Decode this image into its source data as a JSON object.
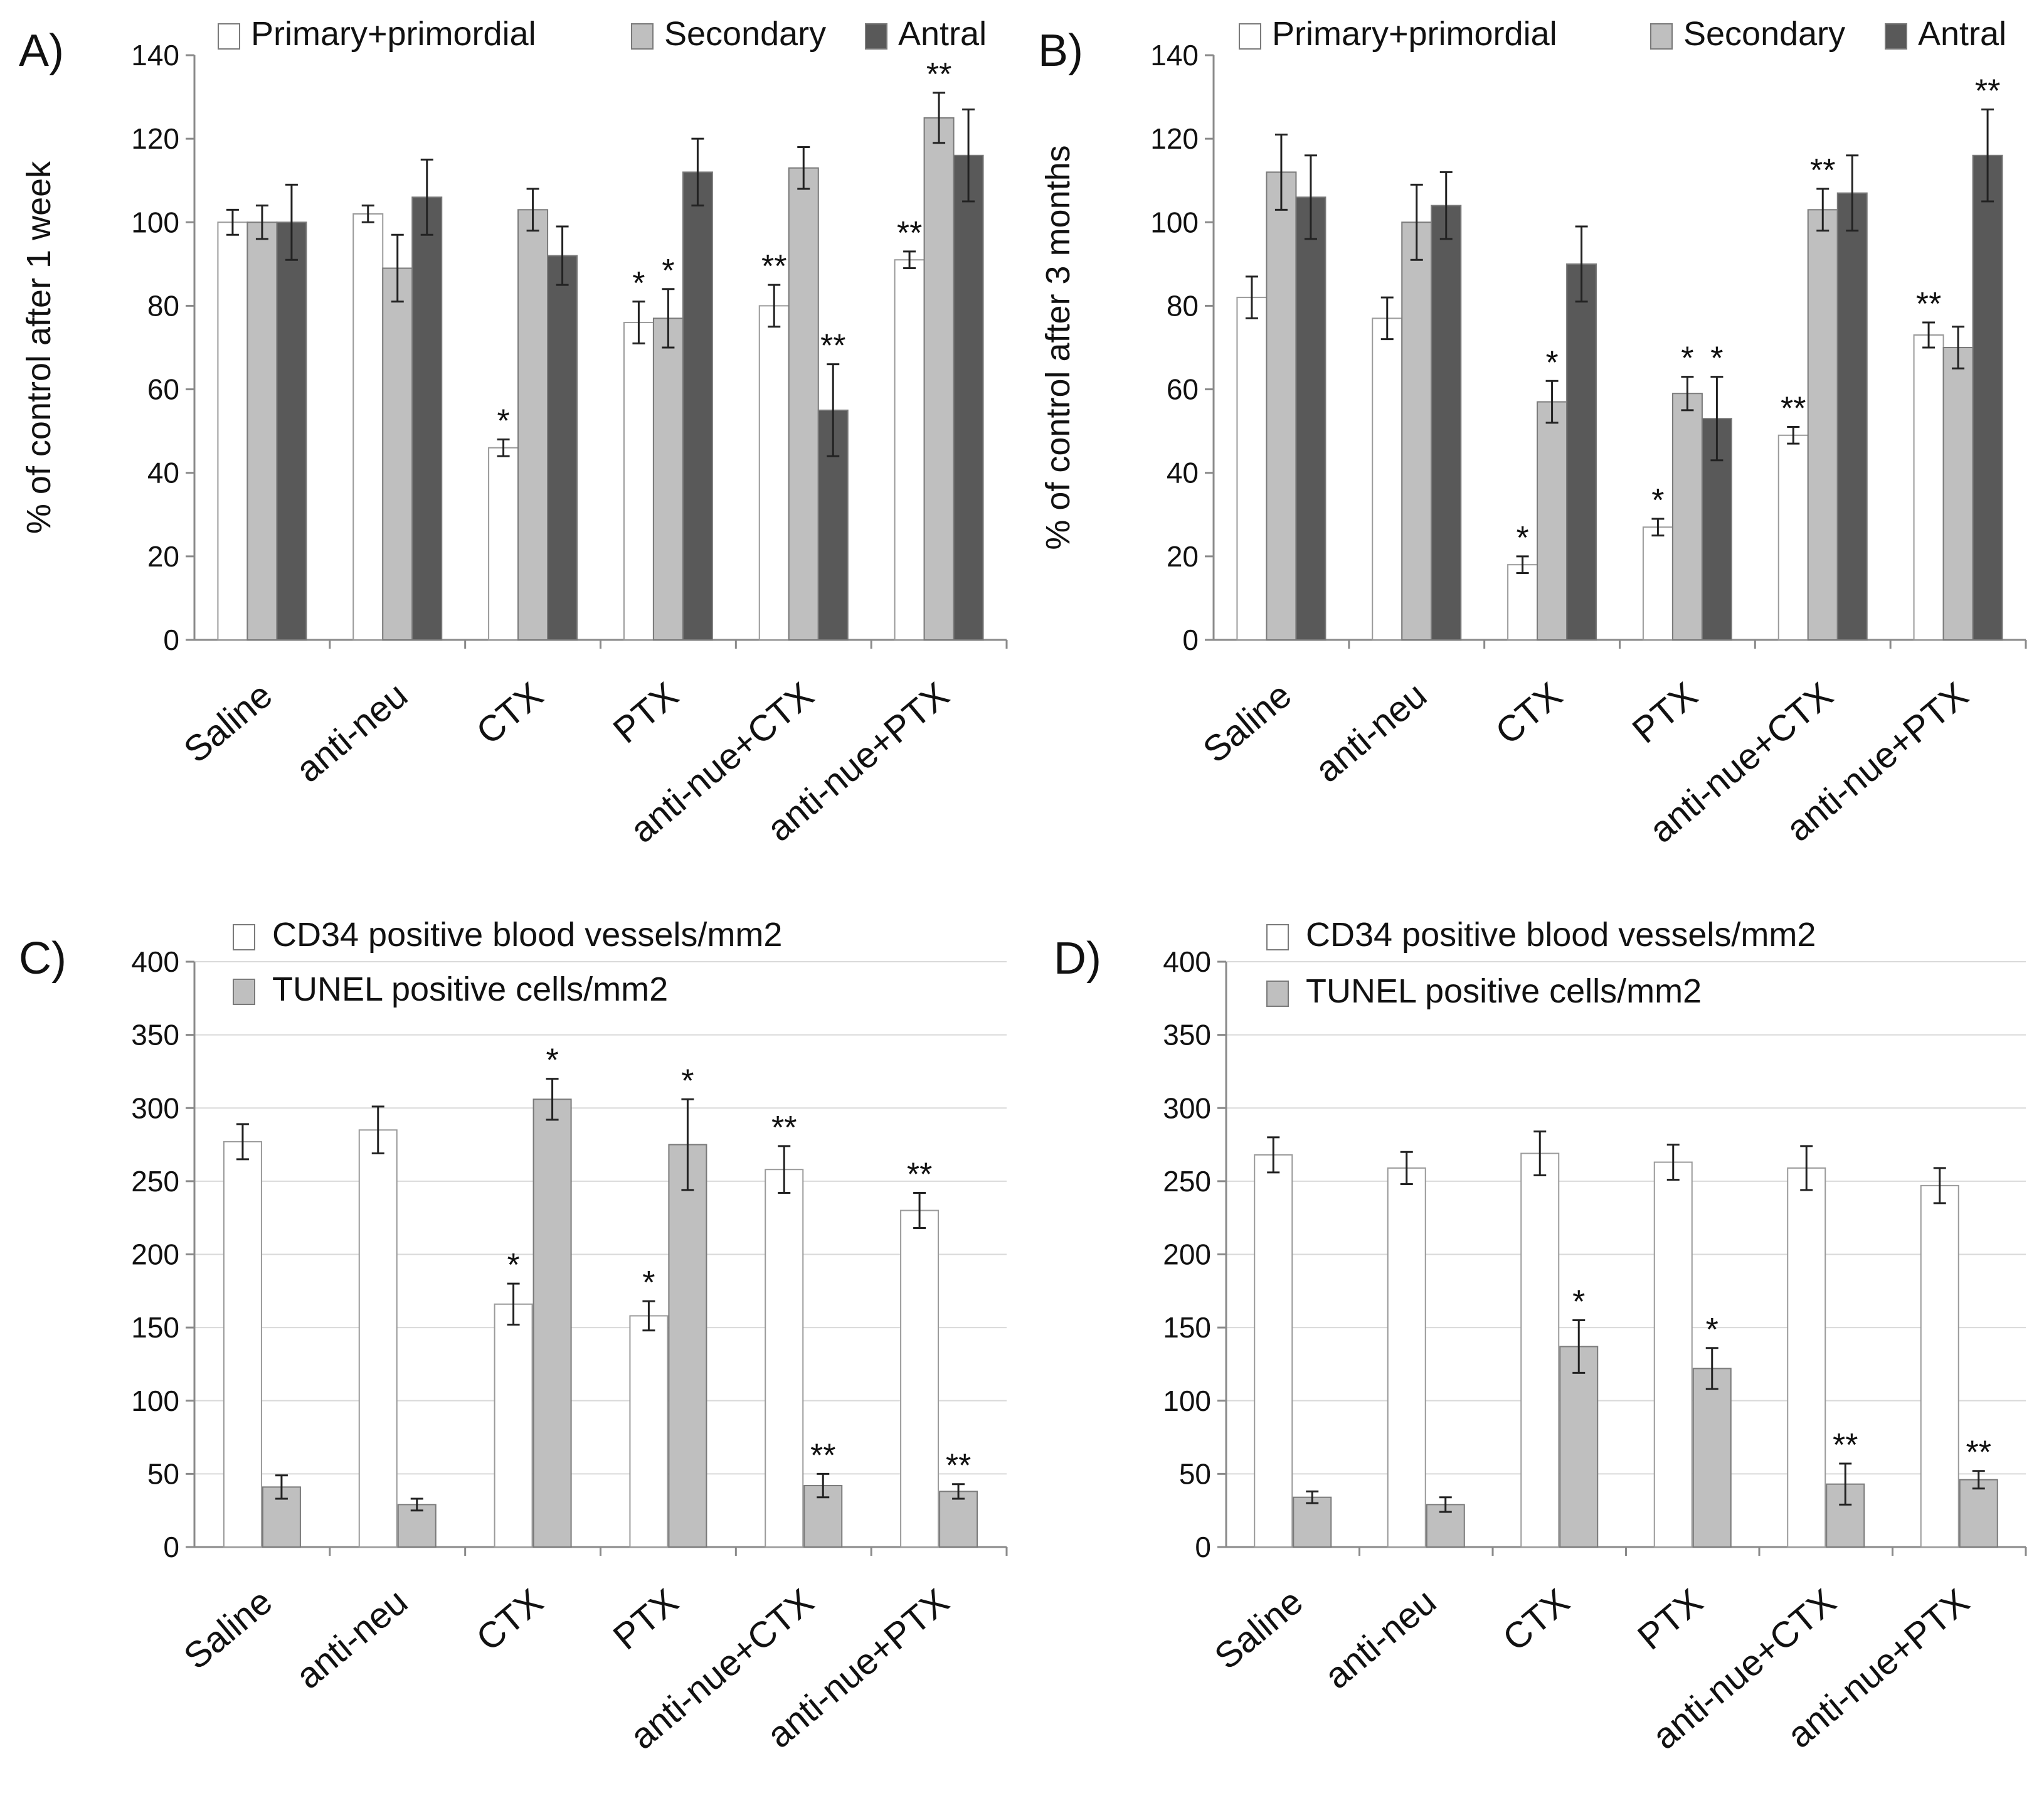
{
  "chart_data": [
    {
      "type": "bar",
      "panel_label": "A)",
      "ylabel": "% of control after 1 week",
      "ylim": [
        0,
        140
      ],
      "yticks": [
        "0",
        "20",
        "40",
        "60",
        "80",
        "100",
        "120",
        "140"
      ],
      "grid": false,
      "legend_position": "top",
      "categories": [
        "Saline",
        "anti-neu",
        "CTX",
        "PTX",
        "anti-nue+CTX",
        "anti-nue+PTX"
      ],
      "series": [
        {
          "name": "Primary+primordial",
          "color": "#ffffff",
          "values": [
            100,
            102,
            46,
            76,
            80,
            91
          ],
          "errors": [
            3,
            2,
            2,
            5,
            5,
            2
          ],
          "sig": [
            "",
            "",
            "*",
            "*",
            "**",
            "**"
          ]
        },
        {
          "name": "Secondary",
          "color": "#bfbfbf",
          "values": [
            100,
            89,
            103,
            77,
            113,
            125
          ],
          "errors": [
            4,
            8,
            5,
            7,
            5,
            6
          ],
          "sig": [
            "",
            "",
            "",
            "*",
            "",
            "**"
          ]
        },
        {
          "name": "Antral",
          "color": "#595959",
          "values": [
            100,
            106,
            92,
            112,
            55,
            116
          ],
          "errors": [
            9,
            9,
            7,
            8,
            11,
            11
          ],
          "sig": [
            "",
            "",
            "",
            "",
            "**",
            ""
          ]
        }
      ]
    },
    {
      "type": "bar",
      "panel_label": "B)",
      "ylabel": "% of control after 3 months",
      "ylim": [
        0,
        140
      ],
      "yticks": [
        "0",
        "20",
        "40",
        "60",
        "80",
        "100",
        "120",
        "140"
      ],
      "grid": false,
      "legend_position": "top",
      "categories": [
        "Saline",
        "anti-neu",
        "CTX",
        "PTX",
        "anti-nue+CTX",
        "anti-nue+PTX"
      ],
      "series": [
        {
          "name": "Primary+primordial",
          "color": "#ffffff",
          "values": [
            82,
            77,
            18,
            27,
            49,
            73
          ],
          "errors": [
            5,
            5,
            2,
            2,
            2,
            3
          ],
          "sig": [
            "",
            "",
            "*",
            "*",
            "**",
            "**"
          ]
        },
        {
          "name": "Secondary",
          "color": "#bfbfbf",
          "values": [
            112,
            100,
            57,
            59,
            103,
            70
          ],
          "errors": [
            9,
            9,
            5,
            4,
            5,
            5
          ],
          "sig": [
            "",
            "",
            "*",
            "*",
            "**",
            ""
          ]
        },
        {
          "name": "Antral",
          "color": "#595959",
          "values": [
            106,
            104,
            90,
            53,
            107,
            116
          ],
          "errors": [
            10,
            8,
            9,
            10,
            9,
            11
          ],
          "sig": [
            "",
            "",
            "",
            "*",
            "",
            "**"
          ]
        }
      ]
    },
    {
      "type": "bar",
      "panel_label": "C)",
      "ylabel": "",
      "ylim": [
        0,
        400
      ],
      "yticks": [
        "0",
        "50",
        "100",
        "150",
        "200",
        "250",
        "300",
        "350",
        "400"
      ],
      "grid": true,
      "legend_position": "top",
      "categories": [
        "Saline",
        "anti-neu",
        "CTX",
        "PTX",
        "anti-nue+CTX",
        "anti-nue+PTX"
      ],
      "series": [
        {
          "name": "CD34 positive blood vessels/mm2",
          "color": "#ffffff",
          "values": [
            277,
            285,
            166,
            158,
            258,
            230
          ],
          "errors": [
            12,
            16,
            14,
            10,
            16,
            12
          ],
          "sig": [
            "",
            "",
            "*",
            "*",
            "**",
            "**"
          ]
        },
        {
          "name": "TUNEL positive cells/mm2",
          "color": "#bfbfbf",
          "values": [
            41,
            29,
            306,
            275,
            42,
            38
          ],
          "errors": [
            8,
            4,
            14,
            31,
            8,
            5
          ],
          "sig": [
            "",
            "",
            "*",
            "*",
            "**",
            "**"
          ]
        }
      ]
    },
    {
      "type": "bar",
      "panel_label": "D)",
      "ylabel": "",
      "ylim": [
        0,
        400
      ],
      "yticks": [
        "0",
        "50",
        "100",
        "150",
        "200",
        "250",
        "300",
        "350",
        "400"
      ],
      "grid": true,
      "legend_position": "top",
      "categories": [
        "Saline",
        "anti-neu",
        "CTX",
        "PTX",
        "anti-nue+CTX",
        "anti-nue+PTX"
      ],
      "series": [
        {
          "name": "CD34 positive blood vessels/mm2",
          "color": "#ffffff",
          "values": [
            268,
            259,
            269,
            263,
            259,
            247
          ],
          "errors": [
            12,
            11,
            15,
            12,
            15,
            12
          ],
          "sig": [
            "",
            "",
            "",
            "",
            "",
            ""
          ]
        },
        {
          "name": "TUNEL positive cells/mm2",
          "color": "#bfbfbf",
          "values": [
            34,
            29,
            137,
            122,
            43,
            46
          ],
          "errors": [
            4,
            5,
            18,
            14,
            14,
            6
          ],
          "sig": [
            "",
            "",
            "*",
            "*",
            "**",
            "**"
          ]
        }
      ]
    }
  ]
}
